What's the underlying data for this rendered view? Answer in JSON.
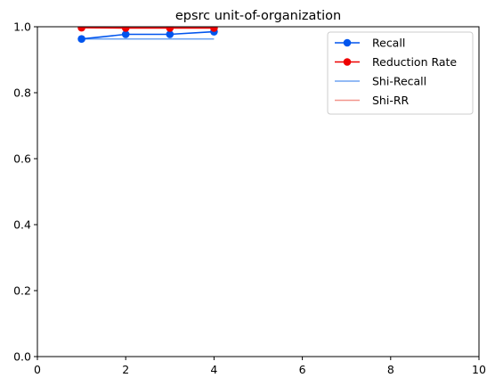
{
  "chart_data": {
    "type": "line",
    "title": "epsrc unit-of-organization",
    "xlabel": "",
    "ylabel": "",
    "xlim": [
      0,
      10
    ],
    "ylim": [
      0,
      1
    ],
    "xticks": [
      0,
      2,
      4,
      6,
      8,
      10
    ],
    "yticks": [
      0.0,
      0.2,
      0.4,
      0.6,
      0.8,
      1.0
    ],
    "xtick_labels": [
      "0",
      "2",
      "4",
      "6",
      "8",
      "10"
    ],
    "ytick_labels": [
      "0.0",
      "0.2",
      "0.4",
      "0.6",
      "0.8",
      "1.0"
    ],
    "grid": false,
    "legend_position": "top-right",
    "series": [
      {
        "name": "Recall",
        "color": "#0055ee",
        "marker": "circle",
        "x": [
          1,
          2,
          3,
          4
        ],
        "y": [
          0.963,
          0.977,
          0.977,
          0.985
        ]
      },
      {
        "name": "Reduction Rate",
        "color": "#ee0000",
        "marker": "circle",
        "x": [
          1,
          2,
          3,
          4
        ],
        "y": [
          0.997,
          0.996,
          0.996,
          0.996
        ]
      },
      {
        "name": "Shi-Recall",
        "color": "#6fa4f2",
        "marker": "none",
        "x": [
          1,
          4
        ],
        "y": [
          0.963,
          0.963
        ]
      },
      {
        "name": "Shi-RR",
        "color": "#f2968c",
        "marker": "none",
        "x": [
          1,
          4
        ],
        "y": [
          1.0,
          1.0
        ]
      }
    ]
  }
}
